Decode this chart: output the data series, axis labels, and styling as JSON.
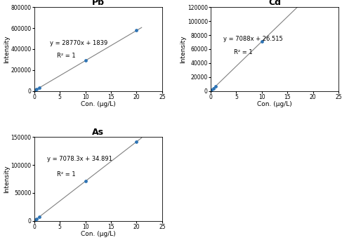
{
  "panels": [
    {
      "title": "Pb",
      "equation": "y = 28770x + 1839",
      "r2": "R² = 1",
      "slope": 28770,
      "intercept": 1839,
      "x_data": [
        0,
        0.2,
        0.5,
        1,
        10,
        20
      ],
      "xlabel": "Con. (μg/L)",
      "ylabel": "Intensity",
      "xlim": [
        0,
        25
      ],
      "ylim": [
        0,
        800000
      ],
      "yticks": [
        0,
        200000,
        400000,
        600000,
        800000
      ],
      "xticks": [
        0,
        5,
        10,
        15,
        20,
        25
      ],
      "eq_x": 3.0,
      "eq_y": 440000,
      "r2_x": 4.5,
      "r2_y": 320000
    },
    {
      "title": "Cd",
      "equation": "y = 7088x + 26.515",
      "r2": "R² = 1",
      "slope": 7088,
      "intercept": 26.515,
      "x_data": [
        0,
        0.2,
        0.5,
        1,
        10,
        20
      ],
      "xlabel": "Con. (μg/L)",
      "ylabel": "Intensity",
      "xlim": [
        0,
        25
      ],
      "ylim": [
        0,
        120000
      ],
      "yticks": [
        0,
        20000,
        40000,
        60000,
        80000,
        100000,
        120000
      ],
      "xticks": [
        0,
        5,
        10,
        15,
        20,
        25
      ],
      "eq_x": 2.5,
      "eq_y": 72000,
      "r2_x": 4.5,
      "r2_y": 53000
    },
    {
      "title": "As",
      "equation": "y = 7078.3x + 34.891",
      "r2": "R² = 1",
      "slope": 7078.3,
      "intercept": 34.891,
      "x_data": [
        0,
        0.2,
        0.5,
        1,
        10,
        20
      ],
      "xlabel": "Con. (μg/L)",
      "ylabel": "Intensity",
      "xlim": [
        0,
        25
      ],
      "ylim": [
        0,
        150000
      ],
      "yticks": [
        0,
        50000,
        100000,
        150000
      ],
      "xticks": [
        0,
        5,
        10,
        15,
        20,
        25
      ],
      "eq_x": 2.5,
      "eq_y": 107000,
      "r2_x": 4.5,
      "r2_y": 80000
    }
  ],
  "marker_color": "#2E74B5",
  "line_color": "#808080",
  "title_fontsize": 9,
  "label_fontsize": 6.5,
  "tick_fontsize": 5.5,
  "eq_fontsize": 6.0,
  "background_color": "#ffffff"
}
